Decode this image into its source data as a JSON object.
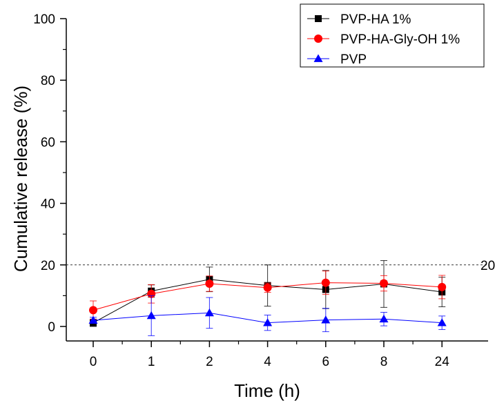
{
  "chart_data": {
    "type": "line",
    "xlabel": "Time (h)",
    "ylabel": "Cumulative release (%)",
    "categories": [
      "0",
      "1",
      "2",
      "4",
      "6",
      "8",
      "24"
    ],
    "ylim": [
      0,
      100
    ],
    "yticks": [
      0,
      20,
      40,
      60,
      80,
      100
    ],
    "grid": false,
    "legend_position": "top-right",
    "reference_line": {
      "y": 20,
      "label": "20",
      "style": "dashed"
    },
    "series": [
      {
        "name": "PVP-HA 1%",
        "color": "#000000",
        "marker": "square",
        "values": [
          1.2,
          11.5,
          15.3,
          13.3,
          12.0,
          13.8,
          11.2
        ],
        "errors": [
          1.2,
          2.0,
          4.0,
          6.7,
          6.2,
          7.6,
          4.8
        ]
      },
      {
        "name": "PVP-HA-Gly-OH 1%",
        "color": "#ff0000",
        "marker": "circle",
        "values": [
          5.3,
          10.6,
          13.9,
          12.6,
          14.2,
          14.0,
          12.8
        ],
        "errors": [
          3.0,
          3.0,
          2.5,
          1.5,
          3.8,
          2.5,
          3.8
        ]
      },
      {
        "name": "PVP",
        "color": "#0000ff",
        "marker": "triangle",
        "values": [
          2.0,
          3.5,
          4.4,
          1.2,
          2.1,
          2.4,
          1.2
        ],
        "errors": [
          1.0,
          6.5,
          5.0,
          2.5,
          3.8,
          2.2,
          2.2
        ]
      }
    ]
  }
}
